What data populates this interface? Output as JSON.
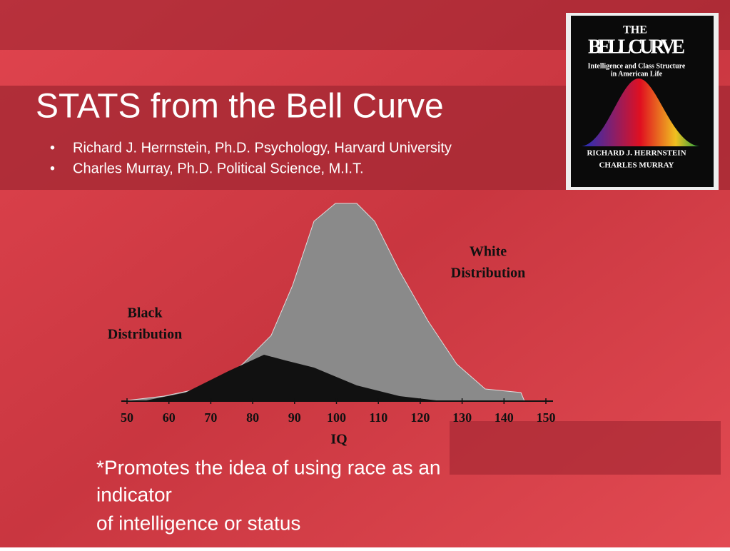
{
  "slide": {
    "title": "STATS from the Bell Curve",
    "bullets": [
      "Richard J. Herrnstein, Ph.D. Psychology, Harvard University",
      "Charles Murray, Ph.D. Political Science, M.I.T."
    ],
    "book": {
      "line1": "THE",
      "line2": "BELL CURVE",
      "subtitle1": "Intelligence and Class Structure",
      "subtitle2": "in American Life",
      "author1": "RICHARD J. HERRNSTEIN",
      "author2": "CHARLES MURRAY"
    },
    "figure": {
      "label_black": [
        "Black",
        "Distribution"
      ],
      "label_white": [
        "White",
        "Distribution"
      ],
      "x_ticks": [
        50,
        60,
        70,
        80,
        90,
        100,
        110,
        120,
        130,
        140,
        150
      ],
      "x_label": "IQ"
    },
    "note": [
      "*Promotes the idea of using race as an",
      "indicator",
      "of intelligence or status"
    ]
  }
}
